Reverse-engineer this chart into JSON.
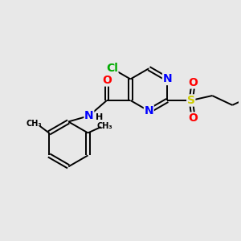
{
  "background_color": "#e8e8e8",
  "bond_color": "#000000",
  "atom_colors": {
    "N": "#0000ff",
    "O": "#ff0000",
    "Cl": "#00aa00",
    "S": "#cccc00",
    "C": "#000000",
    "H": "#000000"
  },
  "bond_lw": 1.4,
  "font_size_atoms": 10,
  "font_size_small": 8
}
